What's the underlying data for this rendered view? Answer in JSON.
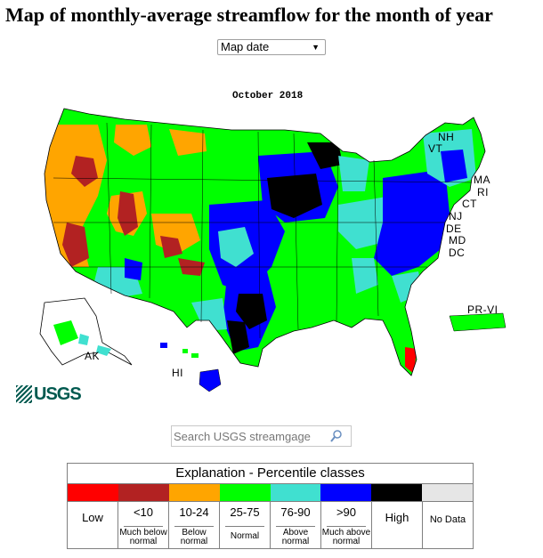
{
  "page": {
    "title": "Map of monthly-average streamflow for the month of year"
  },
  "selector": {
    "selected": "Map date"
  },
  "map": {
    "date_label": "October 2018",
    "state_labels": {
      "nh": "NH",
      "vt": "VT",
      "ma": "MA",
      "ri": "RI",
      "ct": "CT",
      "nj": "NJ",
      "de": "DE",
      "md": "MD",
      "dc": "DC",
      "pr_vi": "PR-VI",
      "ak": "AK",
      "hi": "HI"
    }
  },
  "logo": {
    "text": "USGS"
  },
  "search": {
    "placeholder": "Search USGS streamgage"
  },
  "legend": {
    "title": "Explanation - Percentile classes",
    "classes": [
      {
        "main": "Low",
        "sub": "",
        "color": "#ff0000"
      },
      {
        "main": "<10",
        "sub": "Much below normal",
        "color": "#b22222"
      },
      {
        "main": "10-24",
        "sub": "Below normal",
        "color": "#ffa500"
      },
      {
        "main": "25-75",
        "sub": "Normal",
        "color": "#00ff00"
      },
      {
        "main": "76-90",
        "sub": "Above normal",
        "color": "#40e0d0"
      },
      {
        "main": ">90",
        "sub": "Much above normal",
        "color": "#0000ff"
      },
      {
        "main": "High",
        "sub": "",
        "color": "#000000"
      },
      {
        "main": "No Data",
        "sub": "",
        "color": "#e6e6e6"
      }
    ]
  },
  "colors": {
    "low": "#ff0000",
    "much_below": "#b22222",
    "below": "#ffa500",
    "normal": "#00ff00",
    "above": "#40e0d0",
    "much_above": "#0000ff",
    "high": "#000000",
    "no_data": "#e6e6e6",
    "logo": "#00594f"
  }
}
